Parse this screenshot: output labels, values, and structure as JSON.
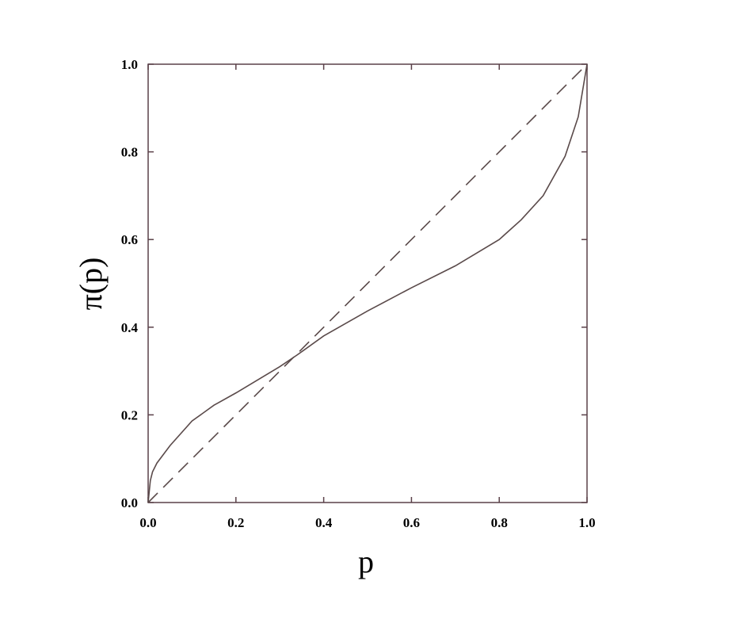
{
  "chart_data": {
    "type": "line",
    "title": "",
    "xlabel": "p",
    "ylabel": "π(p)",
    "xlim": [
      0,
      1
    ],
    "ylim": [
      0,
      1
    ],
    "grid": false,
    "x_ticks": [
      "0.0",
      "0.2",
      "0.4",
      "0.6",
      "0.8",
      "1.0"
    ],
    "y_ticks": [
      "0.0",
      "0.2",
      "0.4",
      "0.6",
      "0.8",
      "1.0"
    ],
    "series": [
      {
        "style": "solid",
        "color": "#5a4a4a",
        "x": [
          0,
          0.005,
          0.01,
          0.02,
          0.05,
          0.1,
          0.15,
          0.2,
          0.25,
          0.3,
          0.34,
          0.4,
          0.5,
          0.6,
          0.7,
          0.8,
          0.85,
          0.9,
          0.95,
          0.98,
          1.0
        ],
        "y": [
          0,
          0.05,
          0.07,
          0.09,
          0.13,
          0.186,
          0.222,
          0.25,
          0.28,
          0.31,
          0.337,
          0.38,
          0.437,
          0.49,
          0.54,
          0.6,
          0.645,
          0.7,
          0.79,
          0.88,
          1.0
        ]
      },
      {
        "style": "dashed",
        "color": "#5a4a4a",
        "x": [
          0,
          1
        ],
        "y": [
          0,
          1
        ]
      }
    ]
  }
}
